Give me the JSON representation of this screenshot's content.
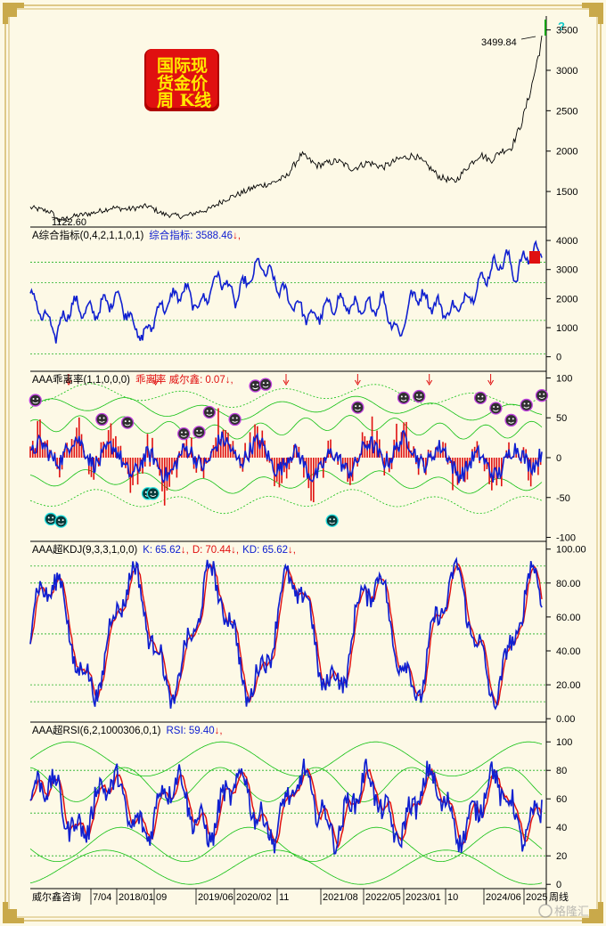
{
  "logo": {
    "line1": "国际现",
    "line2": "货金价",
    "line3": "周 K线",
    "bg_color": "#e01010",
    "text_color": "#ffe800"
  },
  "colors": {
    "background": "#fdf9e6",
    "price_line": "#000000",
    "indicator_blue": "#1020d0",
    "indicator_red": "#e01010",
    "band_green": "#10c010",
    "grid_green": "#20b020",
    "marker_dark": "#303030"
  },
  "footer": {
    "source": "威尔鑫咨询",
    "date_labels": [
      "7/04",
      "2018/01",
      "09",
      "2019/06",
      "2020/02",
      "11",
      "2021/08",
      "2022/05",
      "2023/01",
      "10",
      "2024/06",
      "2025",
      "周线"
    ]
  },
  "watermark": "格隆汇",
  "chart_data": [
    {
      "type": "line",
      "name": "price",
      "y_ticks": [
        "3500",
        "3000",
        "2500",
        "2000",
        "1500"
      ],
      "ylim": [
        1060,
        3650
      ],
      "annotations": {
        "high": "3499.84",
        "low": "1122.60"
      },
      "anchors_x": [
        0,
        0.04,
        0.055,
        0.09,
        0.12,
        0.16,
        0.19,
        0.23,
        0.26,
        0.3,
        0.33,
        0.35,
        0.38,
        0.42,
        0.44,
        0.47,
        0.5,
        0.53,
        0.56,
        0.6,
        0.63,
        0.66,
        0.69,
        0.72,
        0.75,
        0.78,
        0.8,
        0.83,
        0.86,
        0.88,
        0.9,
        0.92,
        0.94,
        0.96,
        0.98,
        1.0
      ],
      "anchors_y": [
        1300,
        1250,
        1140,
        1200,
        1230,
        1300,
        1280,
        1320,
        1220,
        1190,
        1250,
        1280,
        1400,
        1500,
        1560,
        1600,
        1680,
        1960,
        1820,
        1880,
        1780,
        1860,
        1800,
        1900,
        1950,
        1800,
        1680,
        1620,
        1840,
        1960,
        1880,
        2000,
        2040,
        2340,
        2800,
        3380
      ]
    },
    {
      "type": "line",
      "name": "综合指标",
      "title": "A综合指标(0,4,2,1,1,0,1)",
      "series_label": "综合指标:",
      "value": "3588.46",
      "y_ticks": [
        "4000",
        "3000",
        "2000",
        "1000",
        "0"
      ],
      "ylim": [
        -500,
        4400
      ],
      "ref_lines": [
        3250,
        2550,
        1250,
        100
      ]
    },
    {
      "type": "line",
      "name": "乖离率",
      "title": "AAA乖离率(1,1,0,0,0)",
      "series_label": "乖离率 威尔鑫:",
      "value": "0.07",
      "y_ticks": [
        "100",
        "50",
        "0",
        "-50",
        "-100"
      ],
      "ylim": [
        -105,
        105
      ],
      "signal_down_x": [
        0.075,
        0.245,
        0.5,
        0.64,
        0.78,
        0.9
      ]
    },
    {
      "type": "line",
      "name": "超KDJ",
      "title": "AAA超KDJ(9,3,3,1,0,0)",
      "k_label": "K:",
      "k_value": "65.62",
      "d_label": "D:",
      "d_value": "70.44",
      "kd_label": "KD:",
      "kd_value": "65.62",
      "y_ticks": [
        "100.00",
        "80.00",
        "60.00",
        "40.00",
        "20.00",
        "0.00"
      ],
      "ylim": [
        -2,
        103
      ],
      "ref_lines": [
        90,
        80,
        50,
        20,
        10
      ]
    },
    {
      "type": "line",
      "name": "超RSI",
      "title": "AAA超RSI(6,2,1000306,0,1)",
      "rsi_label": "RSI:",
      "rsi_value": "59.40",
      "y_ticks": [
        "100",
        "80",
        "60",
        "40",
        "20",
        "0"
      ],
      "ylim": [
        -3,
        112
      ],
      "ref_lines": [
        80,
        50,
        20
      ]
    }
  ]
}
